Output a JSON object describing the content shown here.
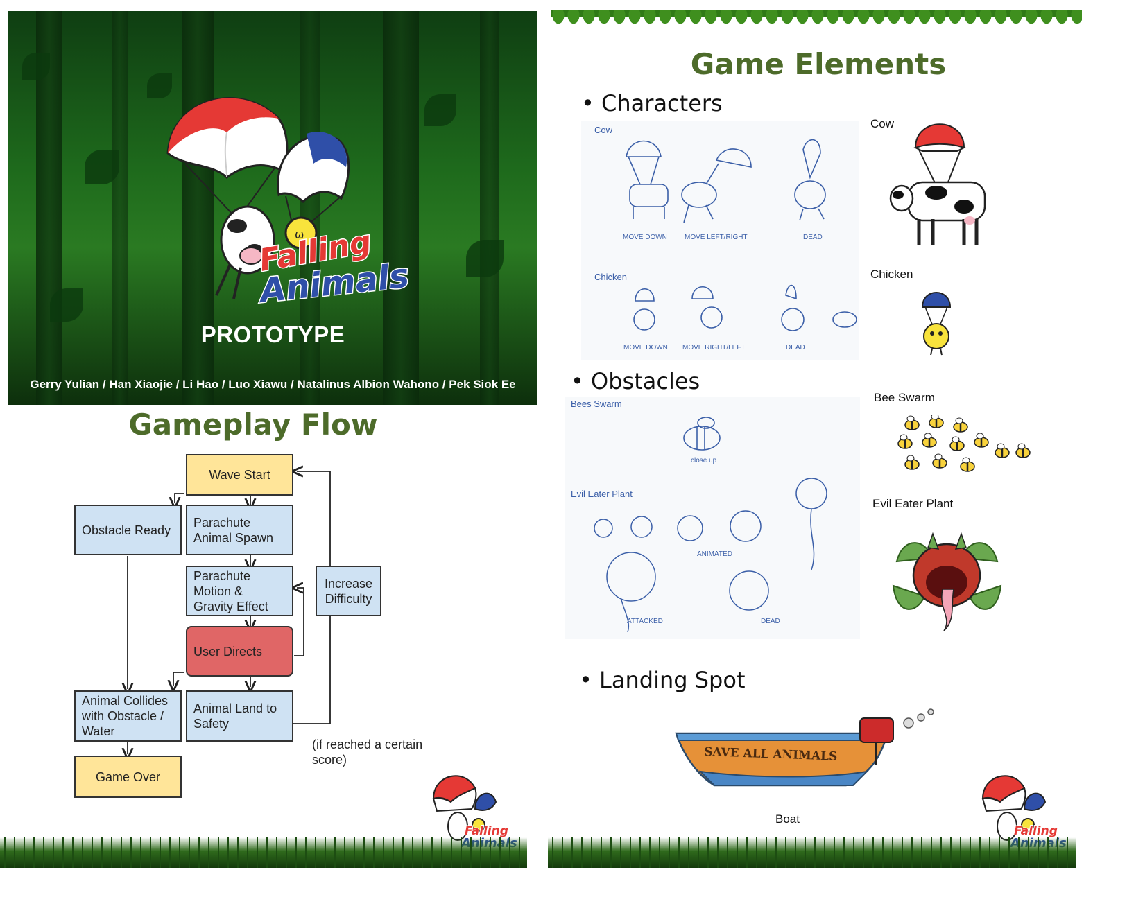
{
  "title_slide": {
    "logo_line1": "Falling",
    "logo_line2": "Animals",
    "subtitle": "PROTOTYPE",
    "authors": "Gerry Yulian  /  Han Xiaojie  /  Li Hao  /  Luo Xiawu  /  Natalinus Albion Wahono  /  Pek Siok Ee"
  },
  "gameplay": {
    "title": "Gameplay Flow",
    "nodes": {
      "wave_start": "Wave Start",
      "obstacle_ready": "Obstacle Ready",
      "parachute_spawn_1": "Parachute",
      "parachute_spawn_2": "Animal Spawn",
      "motion_1": "Parachute",
      "motion_2": "Motion &",
      "motion_3": "Gravity Effect",
      "increase_1": "Increase",
      "increase_2": "Difficulty",
      "user_directs": "User Directs",
      "collides_1": "Animal Collides",
      "collides_2": "with Obstacle /",
      "collides_3": "Water",
      "land_1": "Animal Land to",
      "land_2": "Safety",
      "game_over": "Game Over"
    },
    "note_1": "(if reached a certain",
    "note_2": "score)"
  },
  "elements": {
    "title": "Game Elements",
    "characters": {
      "heading": "Characters",
      "cow_sketch_label": "Cow",
      "cow_states": [
        "MOVE DOWN",
        "MOVE LEFT/RIGHT",
        "DEAD"
      ],
      "chicken_sketch_label": "Chicken",
      "chicken_states": [
        "MOVE DOWN",
        "MOVE RIGHT/LEFT",
        "DEAD"
      ],
      "cow_final": "Cow",
      "chicken_final": "Chicken"
    },
    "obstacles": {
      "heading": "Obstacles",
      "bees_sketch_label": "Bees Swarm",
      "bees_closeup": "close up",
      "plant_sketch_label": "Evil Eater Plant",
      "plant_animated": "ANIMATED",
      "plant_attacked": "ATTACKED",
      "plant_dead": "DEAD",
      "bees_final": "Bee Swarm",
      "plant_final": "Evil Eater Plant"
    },
    "landing": {
      "heading": "Landing Spot",
      "boat_text": "SAVE ALL ANIMALS",
      "boat_label": "Boat"
    }
  },
  "colors": {
    "heading_green": "#4d6b2a",
    "flow_blue": "#cfe2f3",
    "flow_yellow": "#ffe599",
    "flow_red": "#e06666",
    "logo_red": "#e53935",
    "logo_blue": "#2f4fa8"
  }
}
